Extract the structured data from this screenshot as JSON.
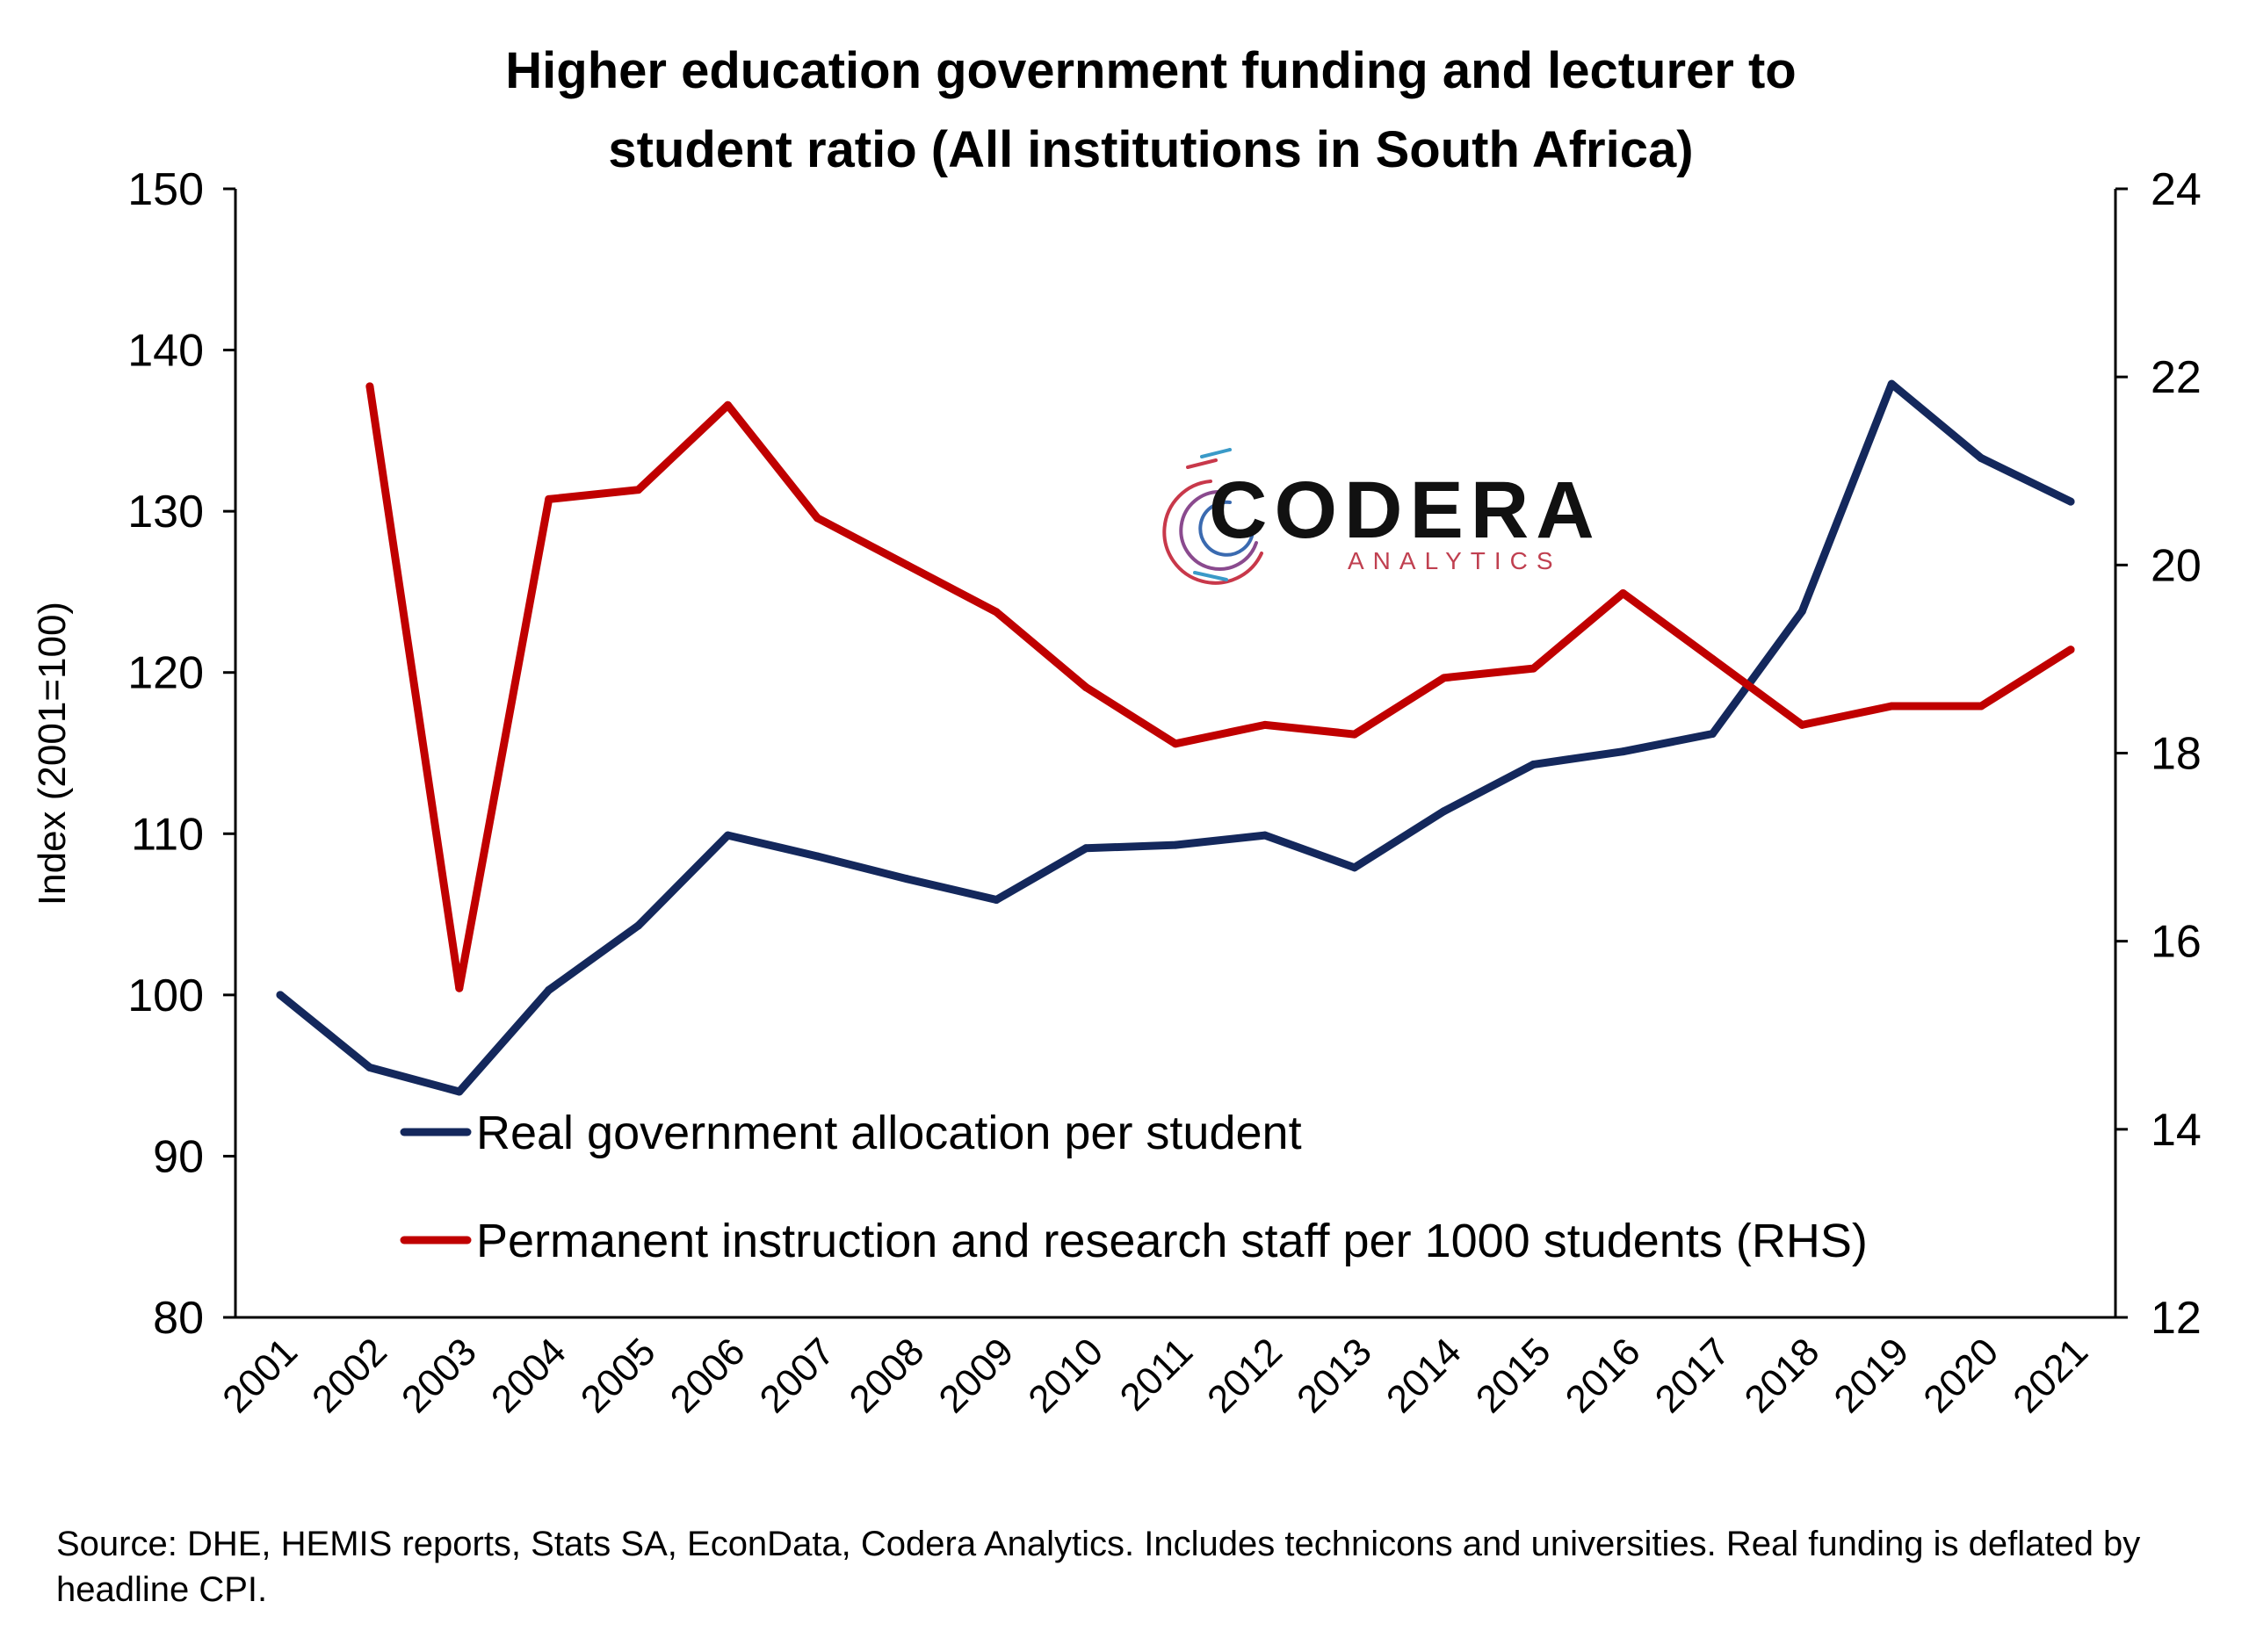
{
  "chart_data": {
    "type": "line",
    "title": "Higher education government funding and lecturer to student ratio (All institutions in South Africa)",
    "title_lines": [
      "Higher education government funding and lecturer to",
      "student ratio (All institutions in South Africa)"
    ],
    "ylabel": "Index (2001=100)",
    "ylim": [
      80,
      150
    ],
    "y_ticks": [
      "80",
      "90",
      "100",
      "110",
      "120",
      "130",
      "140",
      "150"
    ],
    "y2lim": [
      12,
      24
    ],
    "y2_ticks": [
      "12",
      "14",
      "16",
      "18",
      "20",
      "22",
      "24"
    ],
    "grid": false,
    "legend_position": "bottom-left",
    "x": [
      "2001",
      "2002",
      "2003",
      "2004",
      "2005",
      "2006",
      "2007",
      "2008",
      "2009",
      "2010",
      "2011",
      "2012",
      "2013",
      "2014",
      "2015",
      "2016",
      "2017",
      "2018",
      "2019",
      "2020",
      "2021"
    ],
    "series": [
      {
        "name": "Real government allocation per student",
        "axis": "left",
        "color": "#14285c",
        "values": [
          100.0,
          95.5,
          94.0,
          100.3,
          104.3,
          109.9,
          108.6,
          107.2,
          105.9,
          109.1,
          109.3,
          109.9,
          107.9,
          111.4,
          114.3,
          115.1,
          116.2,
          123.8,
          137.9,
          133.3,
          130.6
        ]
      },
      {
        "name": "Permanent instruction and research staff per 1000 students (RHS)",
        "axis": "right",
        "color": "#c00000",
        "values": [
          null,
          21.9,
          15.5,
          20.7,
          20.8,
          21.7,
          20.5,
          20.0,
          19.5,
          18.7,
          18.1,
          18.3,
          18.2,
          18.8,
          18.9,
          19.7,
          19.0,
          18.3,
          18.5,
          18.5,
          19.1
        ]
      }
    ]
  },
  "logo": {
    "name": "CODERA",
    "tagline": "ANALYTICS"
  },
  "source_note": "Source: DHE, HEMIS reports, Stats SA, EconData, Codera Analytics. Includes technicons and universities. Real funding is deflated by headline CPI."
}
